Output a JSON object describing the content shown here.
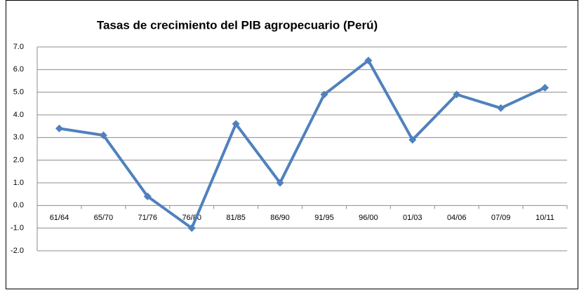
{
  "chart_data": {
    "type": "line",
    "title": "Tasas de crecimiento del PIB agropecuario (Perú)",
    "categories": [
      "61/64",
      "65/70",
      "71/76",
      "76/80",
      "81/85",
      "86/90",
      "91/95",
      "96/00",
      "01/03",
      "04/06",
      "07/09",
      "10/11"
    ],
    "series": [
      {
        "color": "#4f81bd",
        "values": [
          3.4,
          3.1,
          0.4,
          -1.0,
          3.6,
          1.0,
          4.9,
          6.4,
          2.9,
          4.9,
          4.3,
          5.2
        ]
      }
    ],
    "ylim": [
      -2,
      7
    ],
    "yticks": [
      {
        "value": -2,
        "label": "-2.0"
      },
      {
        "value": -1,
        "label": "-1.0"
      },
      {
        "value": 0,
        "label": "0.0"
      },
      {
        "value": 1,
        "label": "1.0"
      },
      {
        "value": 2,
        "label": "2.0"
      },
      {
        "value": 3,
        "label": "3.0"
      },
      {
        "value": 4,
        "label": "4.0"
      },
      {
        "value": 5,
        "label": "5.0"
      },
      {
        "value": 6,
        "label": "6.0"
      },
      {
        "value": 7,
        "label": "7.0"
      }
    ],
    "grid": true
  }
}
